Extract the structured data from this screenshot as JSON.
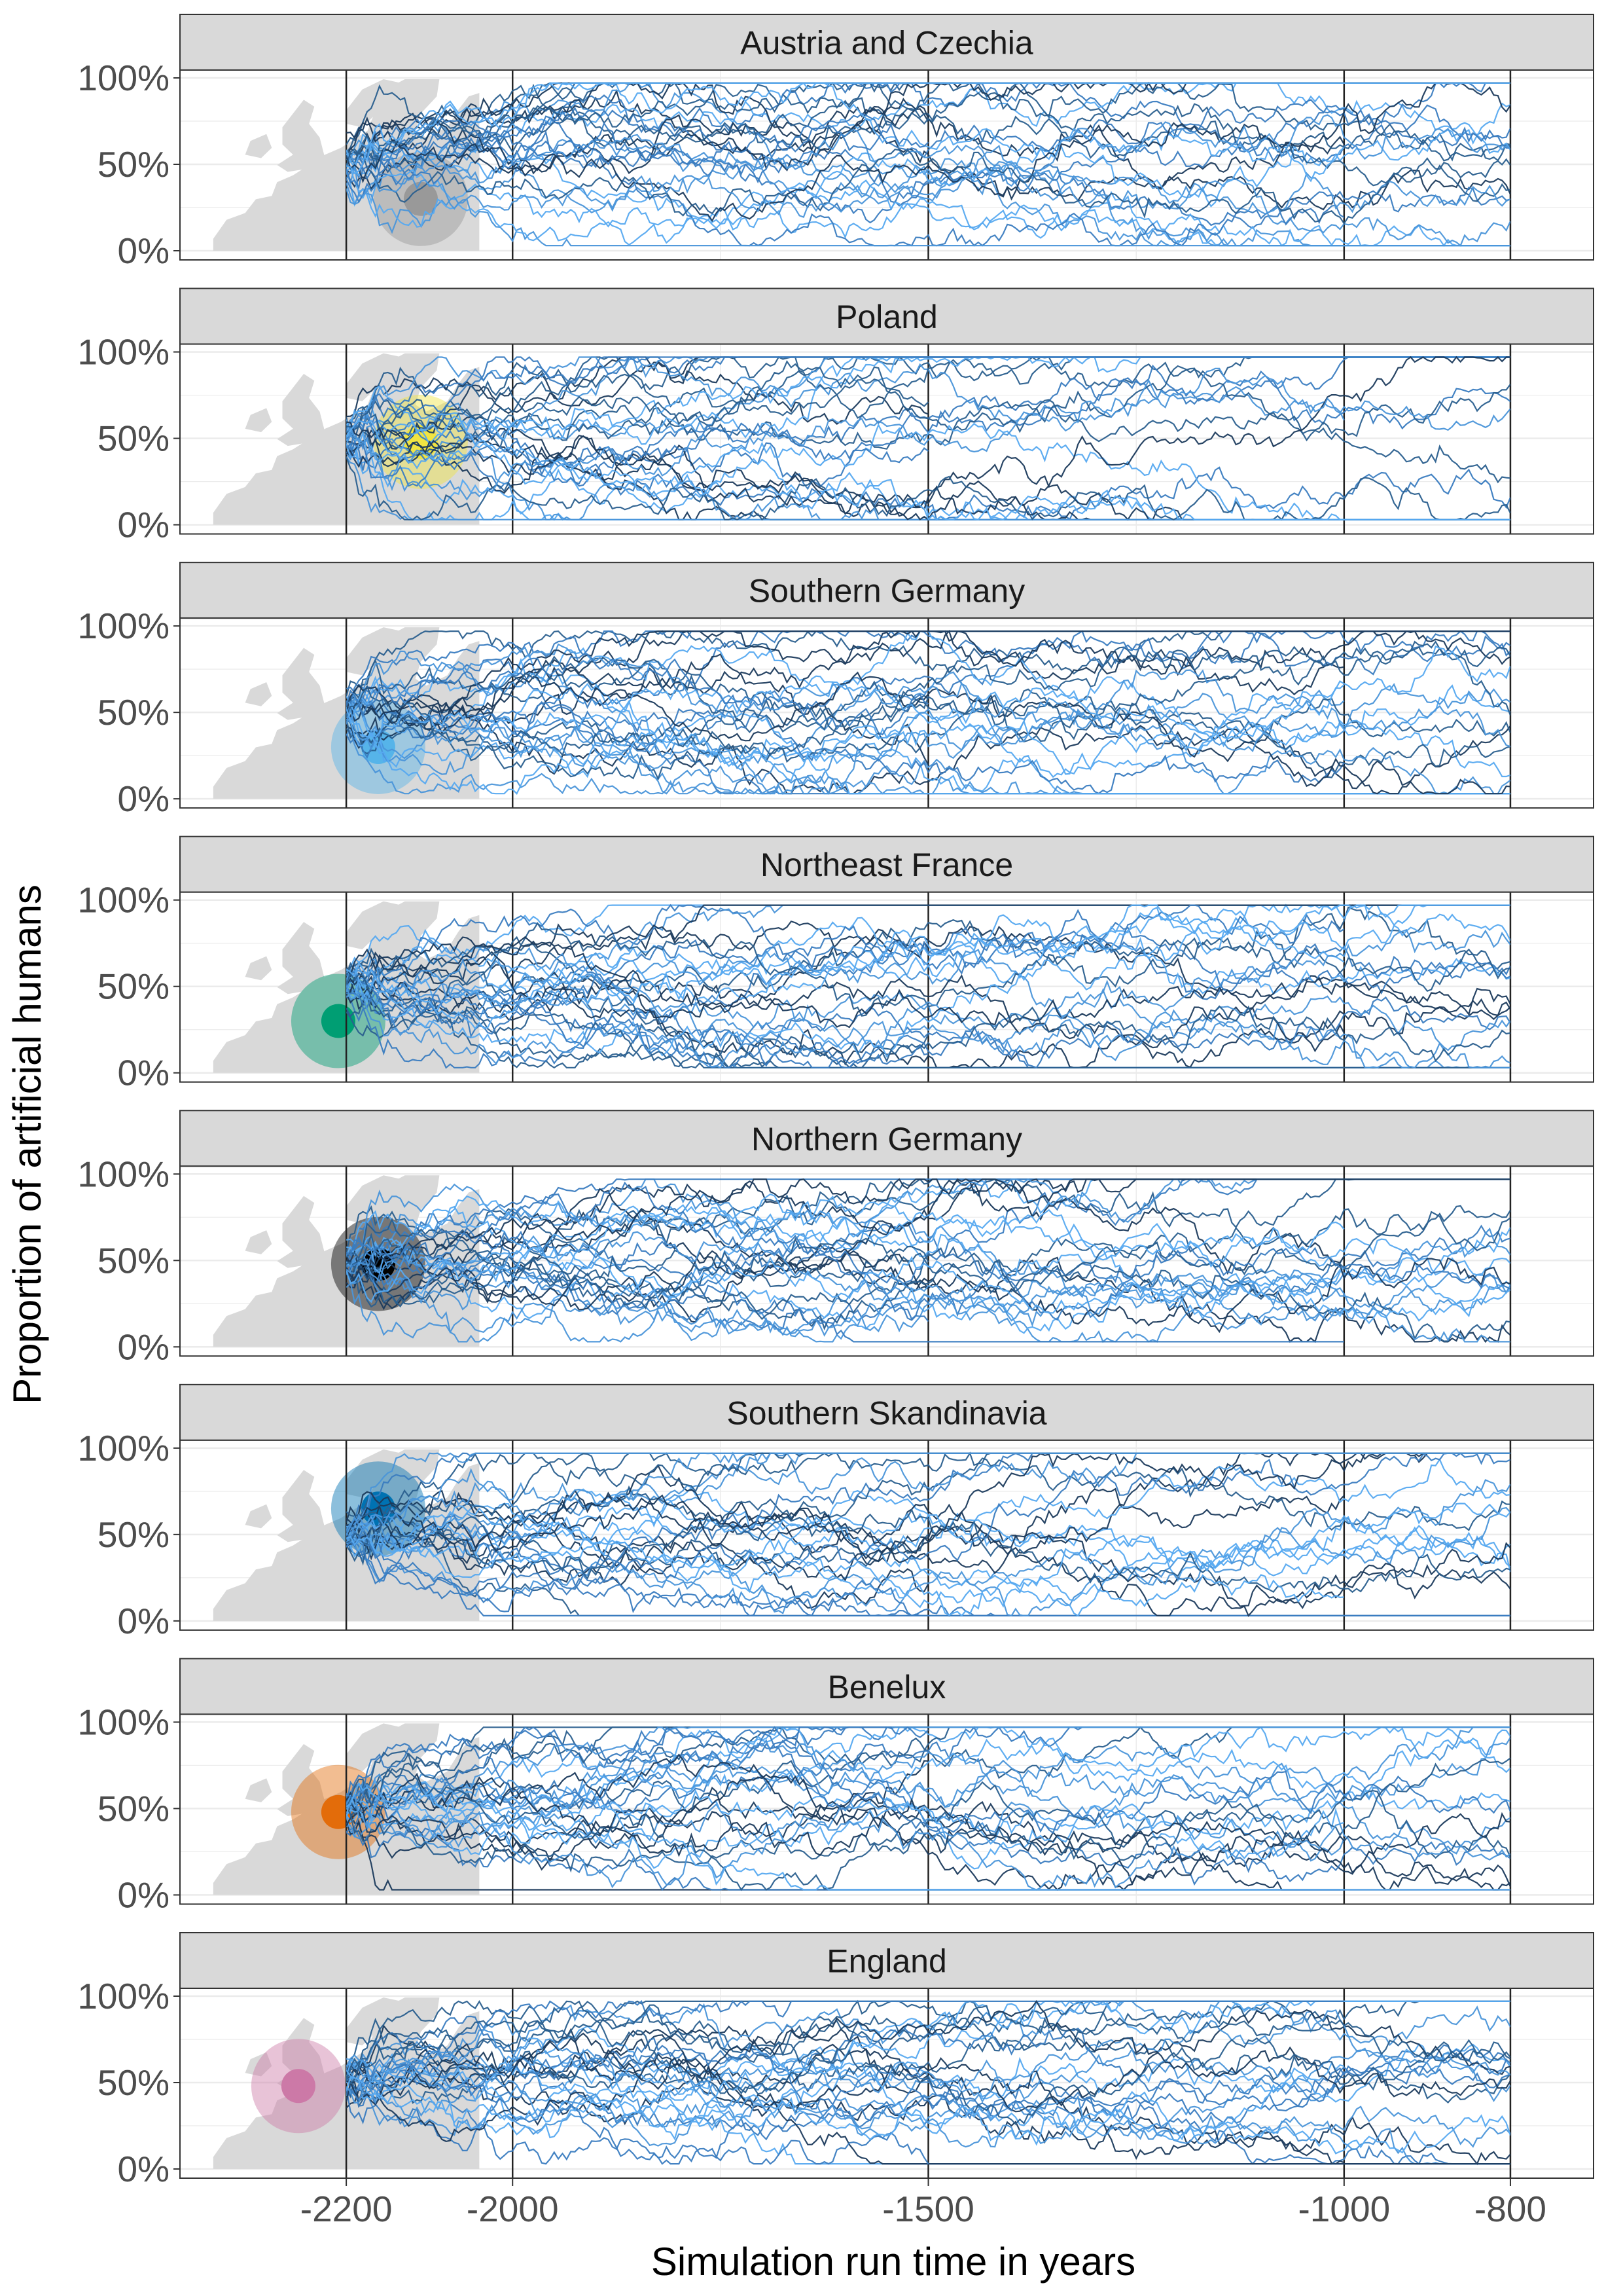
{
  "chart_data": {
    "type": "line",
    "xlabel": "Simulation run time in years",
    "ylabel": "Proportion of artificial humans",
    "xlim": [
      -2400,
      -700
    ],
    "x_tick_values": [
      -2200,
      -2000,
      -1500,
      -1000,
      -800
    ],
    "x_tick_labels": [
      "-2200",
      "-2000",
      "-1500",
      "-1000",
      "-800"
    ],
    "vertical_reference_lines": [
      -2200,
      -2000,
      -1500,
      -1000,
      -800
    ],
    "ylim": [
      0,
      1
    ],
    "y_tick_values": [
      0,
      0.5,
      1
    ],
    "y_tick_labels": [
      "0%",
      "50%",
      "100%"
    ],
    "grid": true,
    "runs_per_panel": 30,
    "line_colors": [
      "#1b3a5c",
      "#2a5f8e",
      "#3a7cc0",
      "#4a95d9",
      "#56a9f0"
    ],
    "map_fill_color": "#d9d9d9",
    "panel_background": "#ffffff",
    "strip_background": "#d9d9d9",
    "panels": [
      {
        "region": "Austria and Czechia",
        "marker_color": "#999999",
        "marker_position": [
          0.78,
          0.3
        ]
      },
      {
        "region": "Poland",
        "marker_color": "#f0e442",
        "marker_position": [
          0.78,
          0.48
        ]
      },
      {
        "region": "Southern Germany",
        "marker_color": "#56b4e9",
        "marker_position": [
          0.62,
          0.3
        ]
      },
      {
        "region": "Northeast France",
        "marker_color": "#009e73",
        "marker_position": [
          0.47,
          0.3
        ]
      },
      {
        "region": "Northern Germany",
        "marker_color": "#000000",
        "marker_position": [
          0.62,
          0.48
        ]
      },
      {
        "region": "Southern Skandinavia",
        "marker_color": "#0072b2",
        "marker_position": [
          0.62,
          0.65
        ]
      },
      {
        "region": "Benelux",
        "marker_color": "#e36c0a",
        "marker_position": [
          0.47,
          0.48
        ]
      },
      {
        "region": "England",
        "marker_color": "#cc79a7",
        "marker_position": [
          0.32,
          0.48
        ]
      }
    ]
  }
}
